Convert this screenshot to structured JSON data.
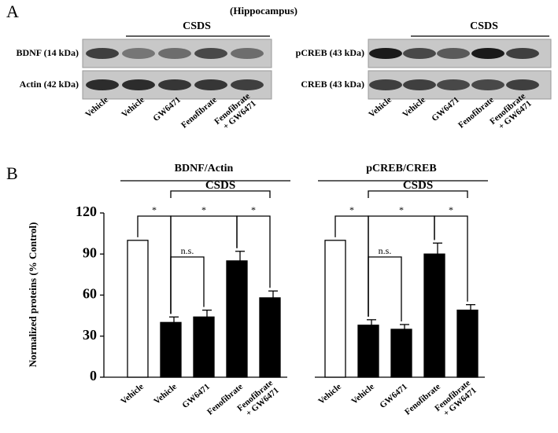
{
  "panel_labels": [
    "A",
    "B"
  ],
  "blots": {
    "title": "(Hippocampus)",
    "panels": [
      {
        "group": "CSDS",
        "rows": [
          "BDNF (14 kDa)",
          "Actin (42 kDa)"
        ],
        "lanes": [
          "Vehicle",
          "Vehicle",
          "GW6471",
          "Fenofibrate",
          "Fenofibrate\n+ GW6471"
        ]
      },
      {
        "group": "CSDS",
        "rows": [
          "pCREB (43 kDa)",
          "CREB (43 kDa)"
        ],
        "lanes": [
          "Vehicle",
          "Vehicle",
          "GW6471",
          "Fenofibrate",
          "Fenofibrate\n+ GW6471"
        ]
      }
    ]
  },
  "chart_data": [
    {
      "type": "bar",
      "title": "BDNF/Actin",
      "group_label": "CSDS",
      "ylabel": "Normalized proteins (% Control)",
      "categories": [
        "Vehicle",
        "Vehicle",
        "GW6471",
        "Fenofibrate",
        "Fenofibrate\n+ GW6471"
      ],
      "values": [
        100,
        40,
        44,
        85,
        58
      ],
      "errors": [
        null,
        4,
        5,
        7,
        5
      ],
      "colors": [
        "#ffffff",
        "#000000",
        "#000000",
        "#000000",
        "#000000"
      ],
      "ylim": [
        0,
        120
      ],
      "yticks": [
        0,
        30,
        60,
        90,
        120
      ],
      "annotations": [
        "*",
        "*",
        "*",
        "n.s."
      ]
    },
    {
      "type": "bar",
      "title": "pCREB/CREB",
      "group_label": "CSDS",
      "categories": [
        "Vehicle",
        "Vehicle",
        "GW6471",
        "Fenofibrate",
        "Fenofibrate\n+ GW6471"
      ],
      "values": [
        100,
        38,
        35,
        90,
        49
      ],
      "errors": [
        null,
        4,
        3.5,
        8,
        4
      ],
      "colors": [
        "#ffffff",
        "#000000",
        "#000000",
        "#000000",
        "#000000"
      ],
      "ylim": [
        0,
        120
      ],
      "annotations": [
        "*",
        "*",
        "*",
        "n.s."
      ]
    }
  ]
}
